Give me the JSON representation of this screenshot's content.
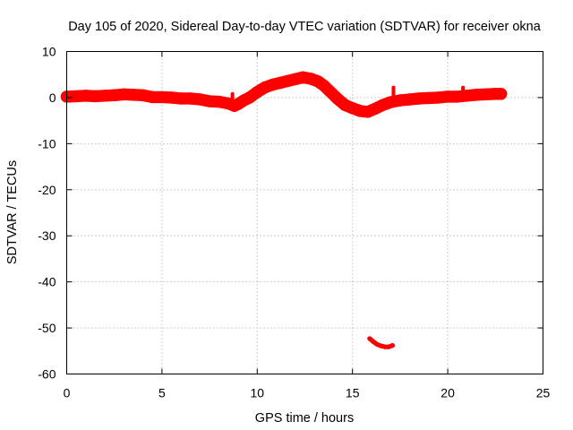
{
  "chart_data": {
    "type": "line",
    "title": "Day 105 of 2020, Sidereal Day-to-day VTEC variation (SDTVAR) for receiver okna",
    "xlabel": "GPS time / hours",
    "ylabel": "SDTVAR / TECUs",
    "xlim": [
      0,
      25
    ],
    "ylim": [
      -60,
      10
    ],
    "xticks": [
      0,
      5,
      10,
      15,
      20,
      25
    ],
    "xtick_labels": [
      "0",
      "5",
      "10",
      "15",
      "20",
      "25"
    ],
    "yticks": [
      10,
      0,
      -10,
      -20,
      -30,
      -40,
      -50,
      -60
    ],
    "ytick_labels": [
      "10",
      "0",
      "-10",
      "-20",
      "-30",
      "-40",
      "-50",
      "-60"
    ],
    "grid": true,
    "color": "#ff0000",
    "series": [
      {
        "name": "main trace",
        "band_tecu": 2.6,
        "x": [
          0,
          0.5,
          1,
          1.5,
          2,
          2.5,
          3,
          3.5,
          4,
          4.5,
          5,
          5.5,
          6,
          6.5,
          7,
          7.5,
          8,
          8.5,
          8.8,
          9,
          9.3,
          9.6,
          10,
          10.4,
          10.8,
          11.2,
          11.6,
          12,
          12.4,
          12.8,
          13.2,
          13.5,
          13.8,
          14.2,
          14.6,
          15,
          15.4,
          15.8,
          16.2,
          16.6,
          17,
          17.5,
          18,
          18.5,
          19,
          19.5,
          20,
          20.5,
          21,
          21.5,
          22,
          22.5,
          22.8
        ],
        "y": [
          0.2,
          0.3,
          0.4,
          0.3,
          0.4,
          0.5,
          0.7,
          0.6,
          0.5,
          0.1,
          0.1,
          0,
          -0.2,
          -0.2,
          -0.4,
          -0.8,
          -0.9,
          -1.3,
          -1.8,
          -1.4,
          -0.6,
          0,
          1.2,
          2.2,
          2.8,
          3.2,
          3.6,
          4,
          4.4,
          4.1,
          3.5,
          2.6,
          1.4,
          -0.2,
          -1.6,
          -2.3,
          -2.9,
          -3.1,
          -2.4,
          -1.6,
          -1,
          -0.6,
          -0.4,
          -0.2,
          -0.1,
          0,
          0.2,
          0.2,
          0.4,
          0.6,
          0.7,
          0.8,
          0.8
        ]
      },
      {
        "name": "isolated segment",
        "band_tecu": 1.0,
        "x": [
          15.9,
          16.1,
          16.3,
          16.5,
          16.7,
          16.9,
          17.1
        ],
        "y": [
          -52.3,
          -53,
          -53.6,
          -53.9,
          -54.1,
          -54.1,
          -53.8
        ]
      }
    ],
    "spikes": [
      {
        "x": 8.7,
        "y": [
          -2.4,
          0.8
        ]
      },
      {
        "x": 17.15,
        "y": [
          -1.2,
          2.2
        ]
      },
      {
        "x": 20.8,
        "y": [
          -0.2,
          2.2
        ]
      }
    ]
  }
}
